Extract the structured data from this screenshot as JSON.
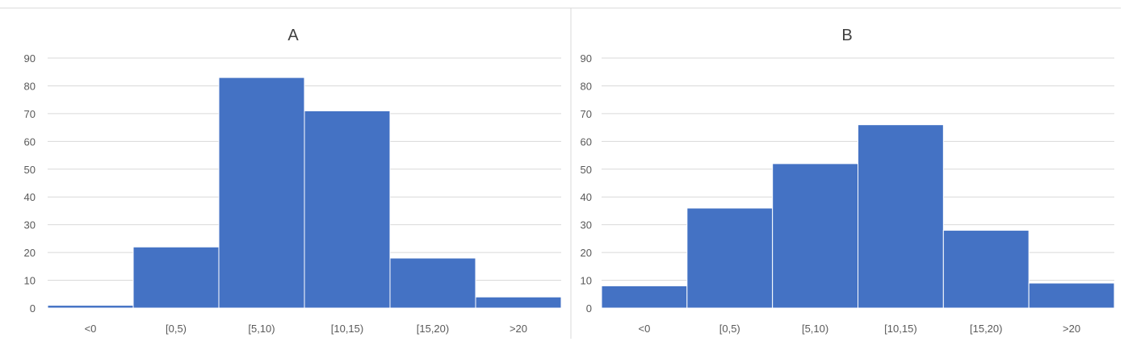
{
  "chart_data": [
    {
      "type": "bar",
      "title": "A",
      "categories": [
        "<0",
        "[0,5)",
        "[5,10)",
        "[10,15)",
        "[15,20)",
        ">20"
      ],
      "values": [
        1,
        22,
        83,
        71,
        18,
        4
      ],
      "ylim": [
        0,
        90
      ],
      "yticks": [
        "0",
        "10",
        "20",
        "30",
        "40",
        "50",
        "60",
        "70",
        "80",
        "90"
      ],
      "grid": true,
      "bar_color": "#4472c4"
    },
    {
      "type": "bar",
      "title": "B",
      "categories": [
        "<0",
        "[0,5)",
        "[5,10)",
        "[10,15)",
        "[15,20)",
        ">20"
      ],
      "values": [
        8,
        36,
        52,
        66,
        28,
        9
      ],
      "ylim": [
        0,
        90
      ],
      "yticks": [
        "0",
        "10",
        "20",
        "30",
        "40",
        "50",
        "60",
        "70",
        "80",
        "90"
      ],
      "grid": true,
      "bar_color": "#4472c4"
    }
  ]
}
